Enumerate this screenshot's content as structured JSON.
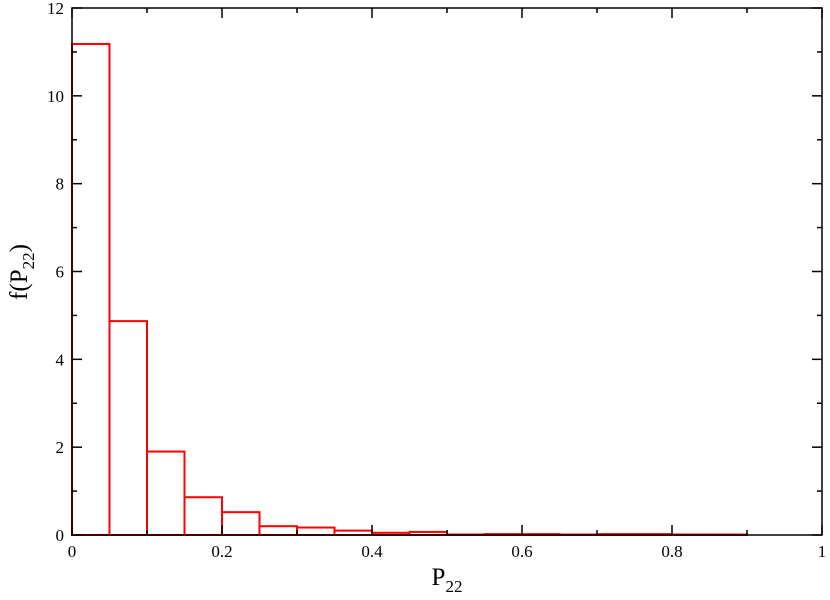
{
  "chart_data": {
    "type": "histogram",
    "xlabel": [
      "P",
      "22"
    ],
    "ylabel": [
      "f(P",
      "22",
      ")"
    ],
    "bins": [
      0,
      0.05,
      0.1,
      0.15,
      0.2,
      0.25,
      0.3,
      0.35,
      0.4,
      0.45,
      0.5,
      0.55,
      0.6,
      0.65,
      0.7,
      0.75,
      0.8,
      0.85,
      0.9,
      0.95,
      1
    ],
    "values": [
      11.18,
      4.87,
      1.9,
      0.86,
      0.52,
      0.2,
      0.17,
      0.1,
      0.05,
      0.07,
      0.01,
      0.02,
      0.02,
      0.01,
      0.02,
      0.02,
      0.01,
      0.01,
      0.0,
      0.0
    ],
    "color": "#ff0000",
    "xlim": [
      0,
      1
    ],
    "xticks": [
      0,
      0.2,
      0.4,
      0.6,
      0.8,
      1
    ],
    "ylim": [
      0,
      12
    ],
    "yticks": [
      0,
      2,
      4,
      6,
      8,
      10,
      12
    ]
  }
}
